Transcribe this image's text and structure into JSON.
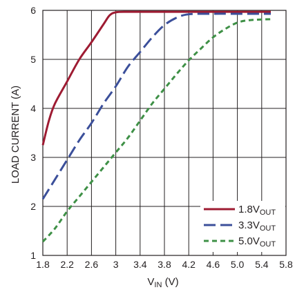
{
  "chart_data": {
    "type": "line",
    "title": "",
    "xlabel": {
      "main": "V",
      "sub": "IN",
      "unit": " (V)"
    },
    "ylabel": "LOAD CURRENT (A)",
    "xlim": [
      1.8,
      5.8
    ],
    "ylim": [
      1,
      6
    ],
    "x_ticks": [
      1.8,
      2.2,
      2.6,
      3.0,
      3.4,
      3.8,
      4.2,
      4.6,
      5.0,
      5.4,
      5.8
    ],
    "x_tick_labels": [
      "1.8",
      "2.2",
      "2.6",
      "3",
      "3.4",
      "3.8",
      "4.2",
      "4.6",
      "5.0",
      "5.4",
      "5.8"
    ],
    "y_ticks": [
      1,
      2,
      3,
      4,
      5,
      6
    ],
    "y_tick_labels": [
      "1",
      "2",
      "3",
      "4",
      "5",
      "6"
    ],
    "grid": true,
    "legend_position": "bottom-right",
    "series": [
      {
        "name": "1.8V",
        "name_sub": "OUT",
        "color": "#9e1b32",
        "dash": "solid",
        "points": [
          [
            1.8,
            3.25
          ],
          [
            1.9,
            3.75
          ],
          [
            2.0,
            4.1
          ],
          [
            2.2,
            4.55
          ],
          [
            2.4,
            5.0
          ],
          [
            2.6,
            5.35
          ],
          [
            2.8,
            5.72
          ],
          [
            2.9,
            5.9
          ],
          [
            3.0,
            5.96
          ],
          [
            3.2,
            5.97
          ],
          [
            3.6,
            5.97
          ],
          [
            4.2,
            5.97
          ],
          [
            4.8,
            5.97
          ],
          [
            5.55,
            5.97
          ]
        ]
      },
      {
        "name": "3.3V",
        "name_sub": "OUT",
        "color": "#3b4f9a",
        "dash": "long-dash",
        "points": [
          [
            1.8,
            2.15
          ],
          [
            2.0,
            2.55
          ],
          [
            2.2,
            2.95
          ],
          [
            2.4,
            3.35
          ],
          [
            2.6,
            3.7
          ],
          [
            2.8,
            4.1
          ],
          [
            3.0,
            4.45
          ],
          [
            3.2,
            4.85
          ],
          [
            3.4,
            5.15
          ],
          [
            3.6,
            5.45
          ],
          [
            3.8,
            5.7
          ],
          [
            4.0,
            5.85
          ],
          [
            4.2,
            5.92
          ],
          [
            4.6,
            5.93
          ],
          [
            5.0,
            5.93
          ],
          [
            5.55,
            5.93
          ]
        ]
      },
      {
        "name": "5.0V",
        "name_sub": "OUT",
        "color": "#3e9046",
        "dash": "short-dash",
        "points": [
          [
            1.8,
            1.28
          ],
          [
            2.0,
            1.55
          ],
          [
            2.2,
            1.9
          ],
          [
            2.4,
            2.2
          ],
          [
            2.6,
            2.5
          ],
          [
            2.8,
            2.8
          ],
          [
            3.0,
            3.1
          ],
          [
            3.2,
            3.4
          ],
          [
            3.4,
            3.75
          ],
          [
            3.6,
            4.1
          ],
          [
            3.8,
            4.4
          ],
          [
            4.0,
            4.7
          ],
          [
            4.2,
            4.98
          ],
          [
            4.4,
            5.22
          ],
          [
            4.6,
            5.45
          ],
          [
            4.8,
            5.62
          ],
          [
            5.0,
            5.75
          ],
          [
            5.2,
            5.8
          ],
          [
            5.55,
            5.82
          ]
        ]
      }
    ]
  }
}
